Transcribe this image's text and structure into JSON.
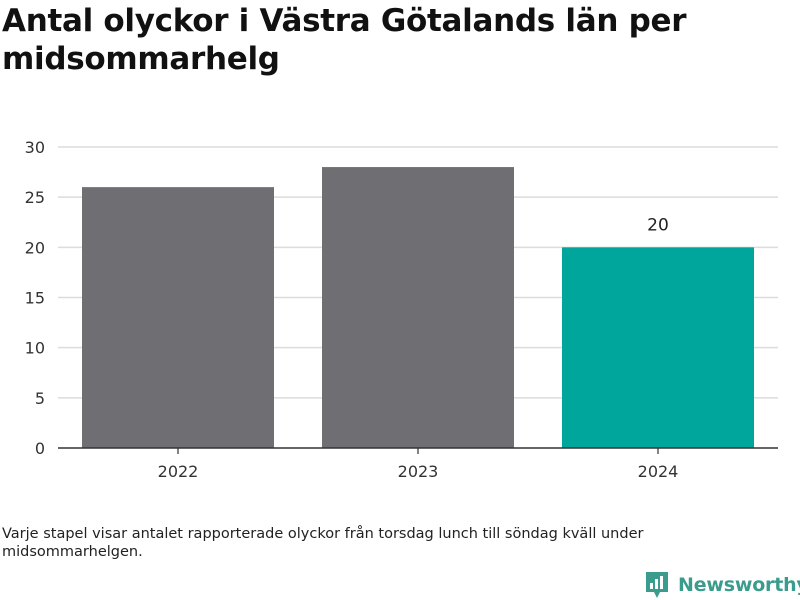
{
  "title": "Antal olyckor i Västra Götalands län per midsommarhelg",
  "footnote": "Varje stapel visar antalet rapporterade olyckor från torsdag lunch till söndag kväll under midsommarhelgen.",
  "brand": {
    "name": "Newsworthy",
    "icon": "newsworthy-logo-icon",
    "color": "#3a9c8c"
  },
  "chart_data": {
    "type": "bar",
    "title": "Antal olyckor i Västra Götalands län per midsommarhelg",
    "xlabel": "",
    "ylabel": "",
    "categories": [
      "2022",
      "2023",
      "2024"
    ],
    "values": [
      26,
      28,
      20
    ],
    "data_labels": [
      "",
      "",
      "20"
    ],
    "colors": [
      "#6f6e73",
      "#6f6e73",
      "#00a69c"
    ],
    "ylim": [
      0,
      30
    ],
    "yticks": [
      0,
      5,
      10,
      15,
      20,
      25,
      30
    ],
    "grid": true,
    "legend": "none"
  }
}
